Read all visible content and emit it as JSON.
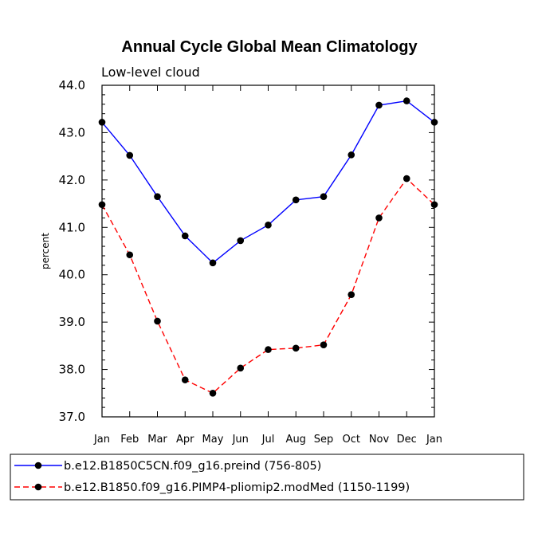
{
  "chart_data": {
    "type": "line",
    "title": "Annual Cycle Global Mean Climatology",
    "subtitle": "Low-level cloud",
    "xlabel": "",
    "ylabel": "percent",
    "ylim": [
      37.0,
      44.0
    ],
    "ytick_labels": [
      "37.0",
      "38.0",
      "39.0",
      "40.0",
      "41.0",
      "42.0",
      "43.0",
      "44.0"
    ],
    "categories": [
      "Jan",
      "Feb",
      "Mar",
      "Apr",
      "May",
      "Jun",
      "Jul",
      "Aug",
      "Sep",
      "Oct",
      "Nov",
      "Dec",
      "Jan"
    ],
    "series": [
      {
        "name": "b.e12.B1850C5CN.f09_g16.preind (756-805)",
        "color": "#0000ff",
        "dash": "solid",
        "values": [
          43.22,
          42.52,
          41.65,
          40.82,
          40.25,
          40.72,
          41.05,
          41.58,
          41.65,
          42.53,
          43.58,
          43.67,
          43.22
        ]
      },
      {
        "name": "b.e12.B1850.f09_g16.PIMP4-pliomip2.modMed (1150-1199)",
        "color": "#ff0000",
        "dash": "dashed",
        "values": [
          41.48,
          40.42,
          39.02,
          37.78,
          37.5,
          38.03,
          38.42,
          38.45,
          38.52,
          39.58,
          41.2,
          42.03,
          41.48
        ]
      }
    ],
    "legend_position": "bottom"
  }
}
